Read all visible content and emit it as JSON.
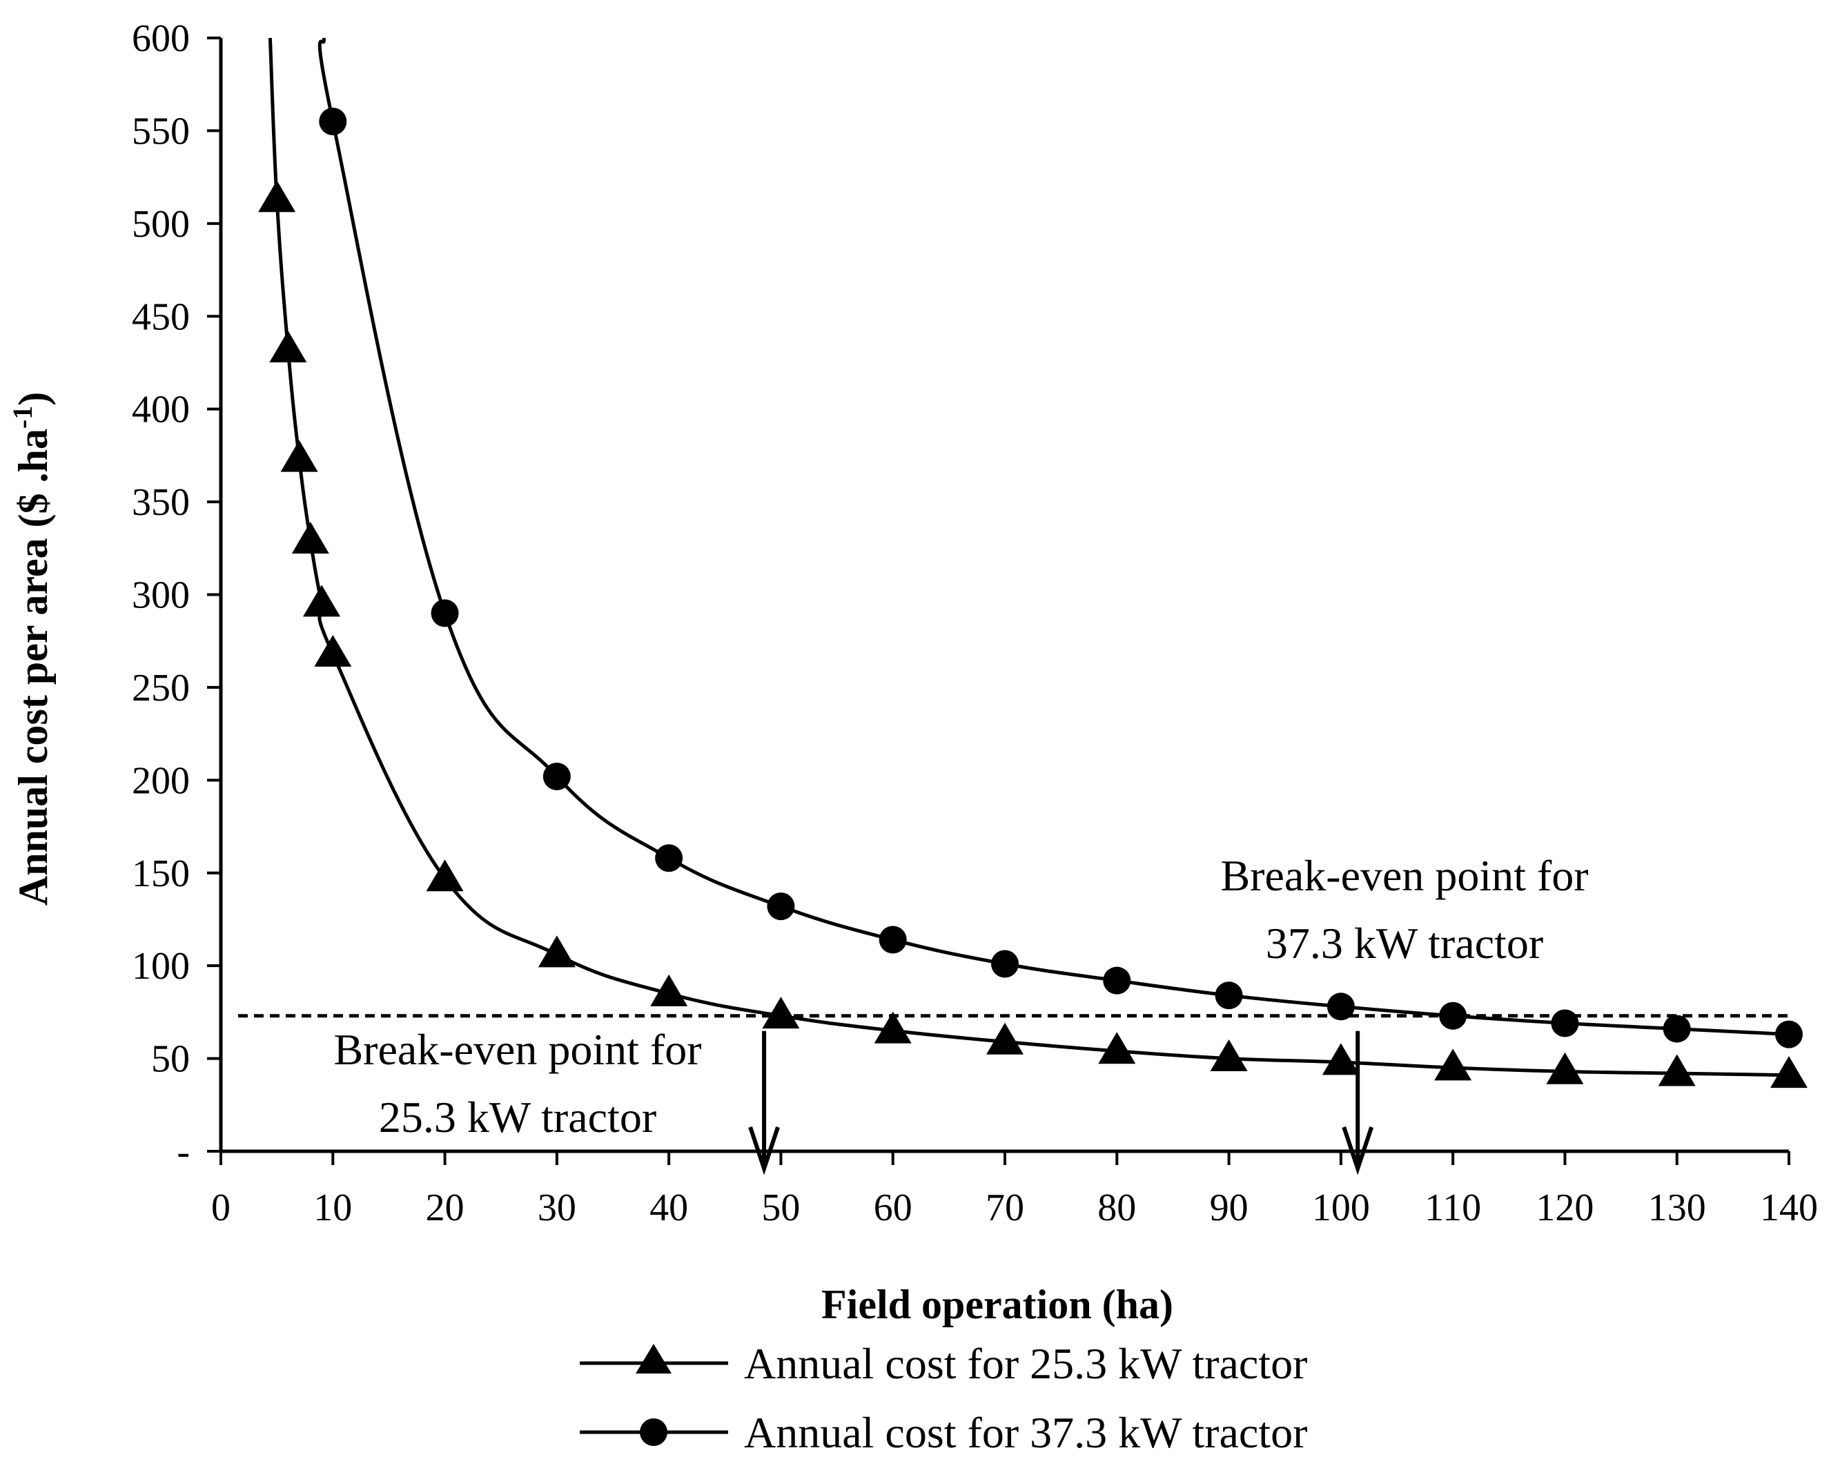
{
  "chart_data": {
    "type": "line",
    "title": "",
    "xlabel": "Field operation (ha)",
    "ylabel": "Annual cost per area ($ .ha",
    "ylabel_sup": "-1",
    "ylabel_close": ")",
    "xlim": [
      0,
      140
    ],
    "ylim": [
      0,
      600
    ],
    "xticks": [
      0,
      10,
      20,
      30,
      40,
      50,
      60,
      70,
      80,
      90,
      100,
      110,
      120,
      130,
      140
    ],
    "yticks": [
      0,
      50,
      100,
      150,
      200,
      250,
      300,
      350,
      400,
      450,
      500,
      550,
      600
    ],
    "ytick_labels": [
      "-",
      "50",
      "100",
      "150",
      "200",
      "250",
      "300",
      "350",
      "400",
      "450",
      "500",
      "550",
      "600"
    ],
    "grid": false,
    "legend_position": "bottom",
    "series": [
      {
        "name": "Annual cost for 25.3 kW tractor",
        "marker": "triangle",
        "color": "#000000",
        "x": [
          5,
          6,
          7,
          8,
          9,
          10,
          20,
          30,
          40,
          50,
          60,
          70,
          80,
          90,
          100,
          110,
          120,
          130,
          140
        ],
        "y": [
          513,
          432,
          373,
          329,
          295,
          268,
          147,
          106,
          85,
          73,
          65,
          59,
          54,
          50,
          48,
          45,
          43,
          42,
          41
        ]
      },
      {
        "name": "Annual cost for 37.3 kW tractor",
        "marker": "circle",
        "color": "#000000",
        "x": [
          10,
          20,
          30,
          40,
          50,
          60,
          70,
          80,
          90,
          100,
          110,
          120,
          130,
          140
        ],
        "y": [
          555,
          290,
          202,
          158,
          132,
          114,
          101,
          92,
          84,
          78,
          73,
          69,
          66,
          63
        ]
      }
    ],
    "curve_extension": [
      {
        "series": 0,
        "x": 4.4,
        "y": 600
      },
      {
        "series": 1,
        "x": 9.2,
        "y": 600
      }
    ],
    "reference_line": {
      "y": 73,
      "style": "dashed"
    },
    "annotations": [
      {
        "lines": [
          "Break-even point for",
          "25.3 kW tractor"
        ],
        "arrow_x": 48.5
      },
      {
        "lines": [
          "Break-even point for",
          "37.3 kW tractor"
        ],
        "arrow_x": 101.5
      }
    ]
  }
}
